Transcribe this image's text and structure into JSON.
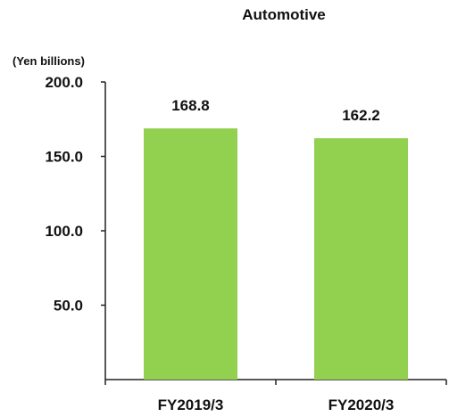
{
  "chart_data": {
    "type": "bar",
    "title": "Automotive",
    "unit_label": "(Yen billions)",
    "categories": [
      "FY2019/3",
      "FY2020/3"
    ],
    "values": [
      168.8,
      162.2
    ],
    "value_labels": [
      "168.8",
      "162.2"
    ],
    "ylim": [
      0,
      200
    ],
    "yticks": [
      50,
      100,
      150,
      200
    ],
    "ytick_labels": [
      "50.0",
      "100.0",
      "150.0",
      "200.0"
    ],
    "xlabel": "",
    "ylabel": "",
    "grid": false,
    "legend": "none",
    "bar_color": "#92d050"
  }
}
